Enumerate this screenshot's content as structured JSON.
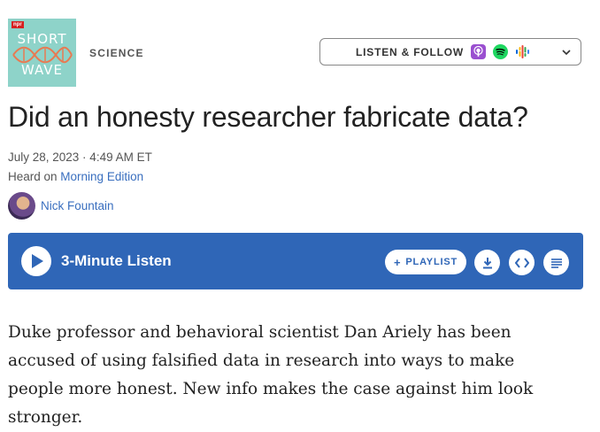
{
  "podcast": {
    "art_badge": "npr",
    "art_title_top": "SHORT",
    "art_title_bottom": "WAVE",
    "art_colors": {
      "background": "#8ed3c9",
      "wave": "#e87a52"
    }
  },
  "section": {
    "label": "SCIENCE"
  },
  "listen_follow": {
    "label": "LISTEN & FOLLOW",
    "icons": [
      "apple-podcasts-icon",
      "spotify-icon",
      "google-podcasts-icon",
      "chevron-down-icon"
    ]
  },
  "article": {
    "headline": "Did an honesty researcher fabricate data?",
    "date": "July 28, 2023 · 4:49 AM ET",
    "heard_on_prefix": "Heard on ",
    "heard_on_show": "Morning Edition",
    "author": "Nick Fountain",
    "teaser": "Duke professor and behavioral scientist Dan Ariely has been accused of using falsified data in research into ways to make people more honest. New info makes the case against him look stronger."
  },
  "player": {
    "title": "3-Minute Listen",
    "playlist_label": "PLAYLIST",
    "accent_color": "#2f66b7",
    "buttons": [
      "download-icon",
      "embed-icon",
      "transcript-icon"
    ]
  }
}
